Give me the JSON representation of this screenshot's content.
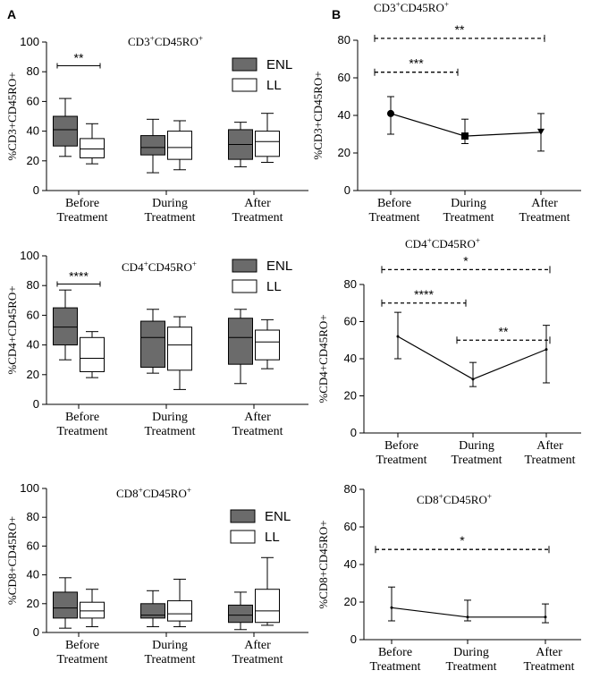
{
  "panels": {
    "A": "A",
    "B": "B"
  },
  "legend": {
    "enl": "ENL",
    "ll": "LL"
  },
  "colors": {
    "enl": "#6b6b6b",
    "ll": "#ffffff",
    "axis": "#000000"
  },
  "chart_data": [
    {
      "id": "A1",
      "type": "box",
      "title_base": "CD3",
      "title_mid": "CD45RO",
      "ylabel": "%CD3+CD45RO+",
      "ylim": [
        0,
        100
      ],
      "yticks": [
        0,
        20,
        40,
        60,
        80,
        100
      ],
      "categories": [
        [
          "Before",
          "Treatment"
        ],
        [
          "During",
          "Treatment"
        ],
        [
          "After",
          "Treatment"
        ]
      ],
      "series": [
        {
          "name": "ENL",
          "boxes": [
            [
              23,
              30,
              41,
              50,
              62
            ],
            [
              12,
              24,
              29,
              37,
              48
            ],
            [
              16,
              21,
              31,
              41,
              46
            ]
          ]
        },
        {
          "name": "LL",
          "boxes": [
            [
              18,
              22,
              28,
              35,
              45
            ],
            [
              14,
              21,
              29,
              40,
              47
            ],
            [
              19,
              23,
              33,
              40,
              52
            ]
          ]
        }
      ],
      "significance": [
        {
          "label": "**",
          "from": 0,
          "to": 0,
          "y": 84
        }
      ]
    },
    {
      "id": "A2",
      "type": "box",
      "title_base": "CD4",
      "title_mid": "CD45RO",
      "ylabel": "%CD4+CD45RO+",
      "ylim": [
        0,
        100
      ],
      "yticks": [
        0,
        20,
        40,
        60,
        80,
        100
      ],
      "categories": [
        [
          "Before",
          "Treatment"
        ],
        [
          "During",
          "Treatment"
        ],
        [
          "After",
          "Treatment"
        ]
      ],
      "series": [
        {
          "name": "ENL",
          "boxes": [
            [
              30,
              40,
              52,
              65,
              77
            ],
            [
              21,
              25,
              45,
              56,
              64
            ],
            [
              14,
              27,
              45,
              58,
              64
            ]
          ]
        },
        {
          "name": "LL",
          "boxes": [
            [
              18,
              22,
              31,
              45,
              49
            ],
            [
              10,
              23,
              40,
              52,
              59
            ],
            [
              24,
              30,
              42,
              50,
              57
            ]
          ]
        }
      ],
      "significance": [
        {
          "label": "****",
          "from": 0,
          "to": 0,
          "y": 81
        }
      ]
    },
    {
      "id": "A3",
      "type": "box",
      "title_base": "CD8",
      "title_mid": "CD45RO",
      "ylabel": "%CD8+CD45RO+",
      "ylim": [
        0,
        100
      ],
      "yticks": [
        0,
        20,
        40,
        60,
        80,
        100
      ],
      "categories": [
        [
          "Before",
          "Treatment"
        ],
        [
          "During",
          "Treatment"
        ],
        [
          "After",
          "Treatment"
        ]
      ],
      "series": [
        {
          "name": "ENL",
          "boxes": [
            [
              3,
              10,
              17,
              28,
              38
            ],
            [
              4,
              10,
              12,
              20,
              29
            ],
            [
              2,
              7,
              12,
              19,
              28
            ]
          ]
        },
        {
          "name": "LL",
          "boxes": [
            [
              4,
              10,
              15,
              21,
              30
            ],
            [
              4,
              8,
              13,
              22,
              37
            ],
            [
              5,
              7,
              15,
              30,
              52
            ]
          ]
        }
      ],
      "significance": []
    },
    {
      "id": "B1",
      "type": "line",
      "title_base": "CD3",
      "title_mid": "CD45RO",
      "ylabel": "%CD3+CD45RO+",
      "ylim": [
        0,
        80
      ],
      "yticks": [
        0,
        20,
        40,
        60,
        80
      ],
      "categories": [
        [
          "Before",
          "Treatment"
        ],
        [
          "During",
          "Treatment"
        ],
        [
          "After",
          "Treatment"
        ]
      ],
      "mean": [
        41,
        29,
        31
      ],
      "lower": [
        30,
        25,
        21
      ],
      "upper": [
        50,
        38,
        41
      ],
      "markers": [
        "circle",
        "square",
        "triangle-down"
      ],
      "significance": [
        {
          "label": "***",
          "from": 0,
          "to": 1,
          "y": 63
        },
        {
          "label": "**",
          "from": 0,
          "to": 2,
          "y": 81
        }
      ]
    },
    {
      "id": "B2",
      "type": "line",
      "title_base": "CD4",
      "title_mid": "CD45RO",
      "ylabel": "%CD4+CD45RO+",
      "ylim": [
        0,
        80
      ],
      "yticks": [
        0,
        20,
        40,
        60,
        80
      ],
      "categories": [
        [
          "Before",
          "Treatment"
        ],
        [
          "During",
          "Treatment"
        ],
        [
          "After",
          "Treatment"
        ]
      ],
      "mean": [
        52,
        29,
        45
      ],
      "lower": [
        40,
        25,
        27
      ],
      "upper": [
        65,
        38,
        58
      ],
      "markers": [
        "none",
        "none",
        "none"
      ],
      "significance": [
        {
          "label": "****",
          "from": 0,
          "to": 1,
          "y": 70
        },
        {
          "label": "*",
          "from": 0,
          "to": 2,
          "y": 88
        },
        {
          "label": "**",
          "from": 1,
          "to": 2,
          "y": 50
        }
      ]
    },
    {
      "id": "B3",
      "type": "line",
      "title_base": "CD8",
      "title_mid": "CD45RO",
      "ylabel": "%CD8+CD45RO+",
      "ylim": [
        0,
        80
      ],
      "yticks": [
        0,
        20,
        40,
        60,
        80
      ],
      "categories": [
        [
          "Before",
          "Treatment"
        ],
        [
          "During",
          "Treatment"
        ],
        [
          "After",
          "Treatment"
        ]
      ],
      "mean": [
        17,
        12,
        12
      ],
      "lower": [
        10,
        10,
        9
      ],
      "upper": [
        28,
        21,
        19
      ],
      "markers": [
        "none",
        "none",
        "none"
      ],
      "significance": [
        {
          "label": "*",
          "from": 0,
          "to": 2,
          "y": 48
        }
      ]
    }
  ]
}
